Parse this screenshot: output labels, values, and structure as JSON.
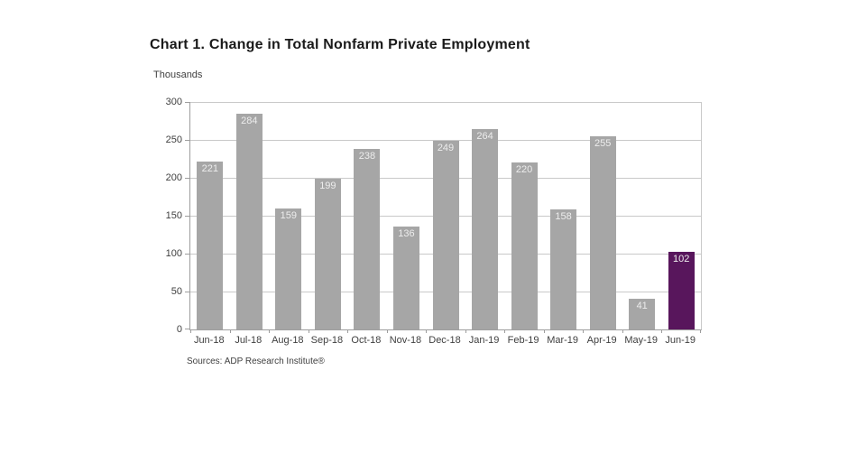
{
  "chart_data": {
    "type": "bar",
    "title": "Chart 1. Change in Total Nonfarm Private Employment",
    "unit_label": "Thousands",
    "categories": [
      "Jun-18",
      "Jul-18",
      "Aug-18",
      "Sep-18",
      "Oct-18",
      "Nov-18",
      "Dec-18",
      "Jan-19",
      "Feb-19",
      "Mar-19",
      "Apr-19",
      "May-19",
      "Jun-19"
    ],
    "values": [
      221,
      284,
      159,
      199,
      238,
      136,
      249,
      264,
      220,
      158,
      255,
      41,
      102
    ],
    "highlight_index": 12,
    "bar_colors": {
      "default": "#a6a6a6",
      "highlight": "#58165c"
    },
    "value_label_color": "#ededed",
    "xlabel": "",
    "ylabel": "Thousands",
    "ylim": [
      0,
      300
    ],
    "yticks": [
      0,
      50,
      100,
      150,
      200,
      250,
      300
    ],
    "grid": true,
    "legend": "none"
  },
  "footer": {
    "source": "Sources: ADP Research Institute®"
  }
}
